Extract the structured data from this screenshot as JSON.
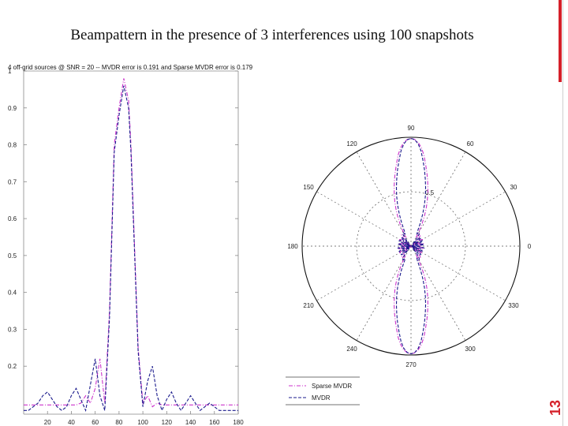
{
  "slide": {
    "title": "Beampattern in the presence of 3 interferences  using 100 snapshots",
    "page_number": "13",
    "accent_color": "#d5202a"
  },
  "chart_data": [
    {
      "type": "line",
      "title": "4 off-grid sources @ SNR = 20 -- MVDR error is 0.191 and Sparse MVDR error is 0.179",
      "xlabel": "",
      "ylabel": "",
      "xlim": [
        0,
        180
      ],
      "ylim": [
        0.07,
        1.0
      ],
      "x_ticks": [
        "20",
        "40",
        "60",
        "80",
        "100",
        "120",
        "140",
        "160",
        "180"
      ],
      "y_ticks": [
        "0.2",
        "0.3",
        "0.4",
        "0.5",
        "0.6",
        "0.7",
        "0.8",
        "0.9",
        "1"
      ],
      "grid": false,
      "series": [
        {
          "name": "Sparse MVDR",
          "color": "#cc33cc",
          "style": "dash-dot",
          "x": [
            0,
            4,
            8,
            12,
            16,
            20,
            24,
            28,
            32,
            36,
            40,
            44,
            48,
            52,
            56,
            60,
            64,
            68,
            72,
            76,
            80,
            84,
            88,
            90,
            92,
            96,
            100,
            104,
            108,
            112,
            116,
            120,
            124,
            128,
            132,
            136,
            140,
            144,
            148,
            152,
            156,
            160,
            164,
            168,
            172,
            176,
            180
          ],
          "y": [
            0.095,
            0.095,
            0.095,
            0.095,
            0.095,
            0.095,
            0.095,
            0.095,
            0.095,
            0.095,
            0.095,
            0.095,
            0.1,
            0.12,
            0.1,
            0.14,
            0.22,
            0.1,
            0.35,
            0.8,
            0.9,
            0.98,
            0.92,
            0.8,
            0.62,
            0.25,
            0.1,
            0.12,
            0.09,
            0.1,
            0.095,
            0.095,
            0.095,
            0.095,
            0.095,
            0.095,
            0.095,
            0.095,
            0.095,
            0.095,
            0.095,
            0.095,
            0.095,
            0.095,
            0.095,
            0.095,
            0.095
          ]
        },
        {
          "name": "MVDR",
          "color": "#1a1a8c",
          "style": "dashed",
          "x": [
            0,
            4,
            8,
            12,
            16,
            20,
            24,
            28,
            32,
            36,
            40,
            44,
            48,
            52,
            56,
            60,
            64,
            68,
            72,
            76,
            80,
            84,
            88,
            90,
            92,
            96,
            100,
            104,
            108,
            112,
            116,
            120,
            124,
            128,
            132,
            136,
            140,
            144,
            148,
            152,
            156,
            160,
            164,
            168,
            172,
            176,
            180
          ],
          "y": [
            0.08,
            0.08,
            0.09,
            0.1,
            0.12,
            0.13,
            0.11,
            0.09,
            0.08,
            0.09,
            0.12,
            0.14,
            0.11,
            0.08,
            0.15,
            0.22,
            0.12,
            0.08,
            0.33,
            0.78,
            0.88,
            0.96,
            0.9,
            0.78,
            0.6,
            0.24,
            0.09,
            0.16,
            0.2,
            0.12,
            0.08,
            0.11,
            0.13,
            0.1,
            0.08,
            0.1,
            0.12,
            0.1,
            0.08,
            0.09,
            0.1,
            0.09,
            0.08,
            0.08,
            0.08,
            0.08,
            0.08
          ]
        }
      ]
    },
    {
      "type": "polar",
      "angle_ticks": [
        "90",
        "60",
        "30",
        "0",
        "330",
        "300",
        "270",
        "240",
        "210",
        "180",
        "150",
        "120"
      ],
      "radius_ticks": [
        "0.5"
      ],
      "radius_max": 1,
      "legend": {
        "placement": "bottom-left",
        "entries": [
          "Sparse MVDR",
          "MVDR"
        ]
      },
      "series": [
        {
          "name": "Sparse MVDR",
          "color": "#cc33cc",
          "main_lobe_width_deg": 14
        },
        {
          "name": "MVDR",
          "color": "#1a1a8c",
          "main_lobe_width_deg": 12
        }
      ]
    }
  ]
}
